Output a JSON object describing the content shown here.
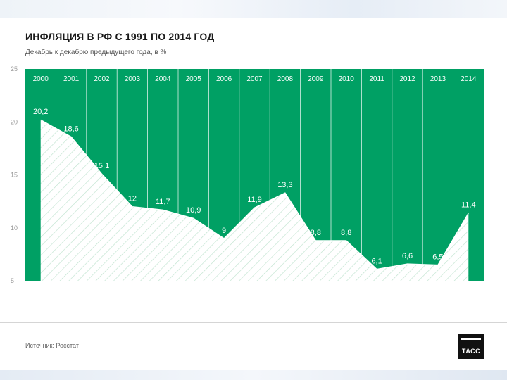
{
  "title": "ИНФЛЯЦИЯ В РФ С 1991 ПО 2014 ГОД",
  "subtitle": "Декабрь к декабрю предыдущего года, в %",
  "source": "Источник: Росстат",
  "logo_text": "ТАСС",
  "colors": {
    "green": "#00a064",
    "hatch": "#bfe3cf",
    "grid": "#ffffff",
    "tick": "#999999"
  },
  "chart_data": {
    "type": "area",
    "title": "ИНФЛЯЦИЯ В РФ С 1991 ПО 2014 ГОД",
    "subtitle": "Декабрь к декабрю предыдущего года, в %",
    "categories": [
      "2000",
      "2001",
      "2002",
      "2003",
      "2004",
      "2005",
      "2006",
      "2007",
      "2008",
      "2009",
      "2010",
      "2011",
      "2012",
      "2013",
      "2014"
    ],
    "values": [
      20.2,
      18.6,
      15.1,
      12,
      11.7,
      10.9,
      9,
      11.9,
      13.3,
      8.8,
      8.8,
      6.1,
      6.6,
      6.5,
      11.4
    ],
    "value_labels": [
      "20,2",
      "18,6",
      "15,1",
      "12",
      "11,7",
      "10,9",
      "9",
      "11,9",
      "13,3",
      "8,8",
      "8,8",
      "6,1",
      "6,6",
      "6,5",
      "11,4"
    ],
    "y_ticks": [
      "25",
      "20",
      "15",
      "10",
      "5"
    ],
    "ylim": [
      5,
      25
    ],
    "xlabel": "",
    "ylabel": ""
  }
}
